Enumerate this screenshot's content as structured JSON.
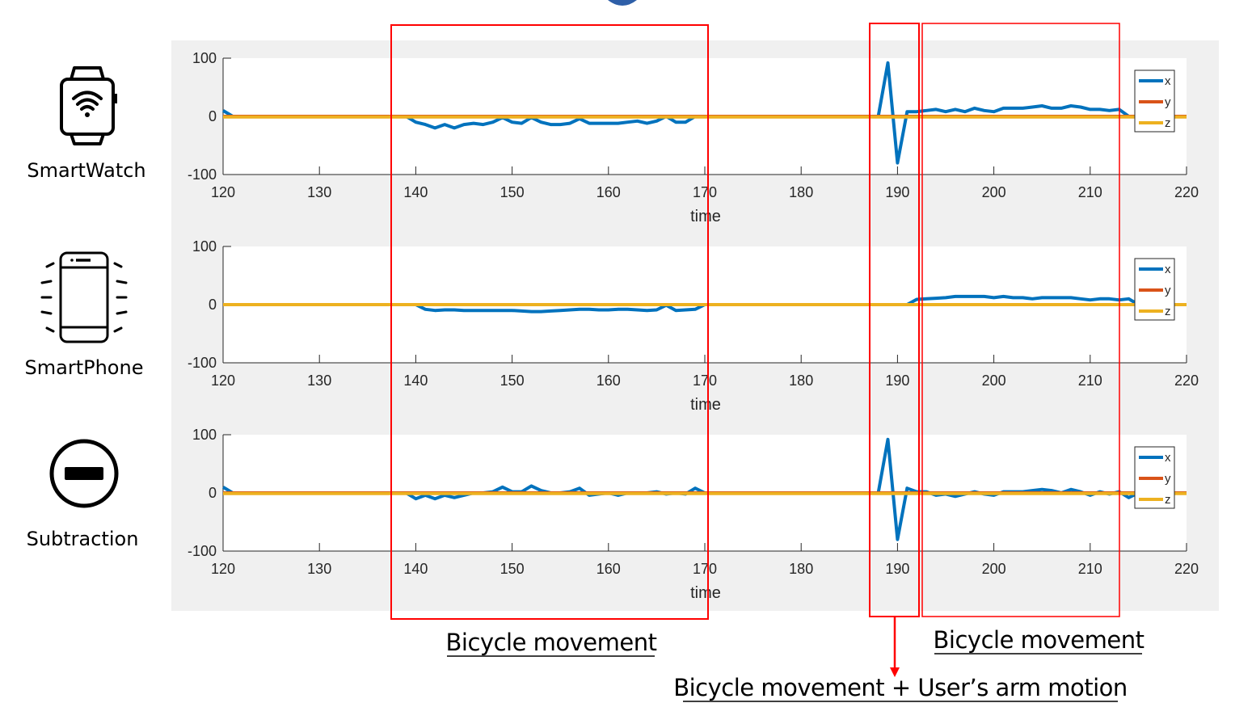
{
  "device_labels": {
    "smartwatch": "SmartWatch",
    "smartphone": "SmartPhone",
    "subtraction": "Subtraction"
  },
  "icons": [
    "smartwatch-icon",
    "smartphone-icon",
    "subtraction-icon"
  ],
  "annotations": {
    "left": "Bicycle movement",
    "right": "Bicycle movement",
    "bottom": "Bicycle movement + User’s arm motion"
  },
  "colors": {
    "x": "#0072BD",
    "y": "#D95319",
    "z": "#EDB120",
    "highlight": "#FF0000",
    "figure_background": "#F0F0F0"
  },
  "chart_data": [
    {
      "type": "line",
      "xlabel": "time",
      "xlim": [
        120,
        220
      ],
      "ylim": [
        -100,
        100
      ],
      "xticks": [
        "120",
        "130",
        "140",
        "150",
        "160",
        "170",
        "180",
        "190",
        "200",
        "210",
        "220"
      ],
      "yticks": [
        "100",
        "0",
        "-100"
      ],
      "legend": [
        "x",
        "y",
        "z"
      ],
      "legend_position": "right",
      "series": [
        {
          "name": "x",
          "points": [
            [
              120,
              10
            ],
            [
              121,
              0
            ],
            [
              138,
              0
            ],
            [
              139,
              0
            ],
            [
              140,
              -10
            ],
            [
              141,
              -14
            ],
            [
              142,
              -20
            ],
            [
              143,
              -14
            ],
            [
              144,
              -20
            ],
            [
              145,
              -14
            ],
            [
              146,
              -12
            ],
            [
              147,
              -14
            ],
            [
              148,
              -10
            ],
            [
              149,
              -2
            ],
            [
              150,
              -10
            ],
            [
              151,
              -12
            ],
            [
              152,
              -2
            ],
            [
              153,
              -10
            ],
            [
              154,
              -14
            ],
            [
              155,
              -14
            ],
            [
              156,
              -12
            ],
            [
              157,
              -4
            ],
            [
              158,
              -12
            ],
            [
              159,
              -12
            ],
            [
              160,
              -12
            ],
            [
              161,
              -12
            ],
            [
              162,
              -10
            ],
            [
              163,
              -8
            ],
            [
              164,
              -12
            ],
            [
              165,
              -8
            ],
            [
              166,
              0
            ],
            [
              167,
              -10
            ],
            [
              168,
              -10
            ],
            [
              169,
              0
            ],
            [
              170,
              0
            ],
            [
              188,
              0
            ],
            [
              189,
              92
            ],
            [
              190,
              -80
            ],
            [
              191,
              8
            ],
            [
              192,
              8
            ],
            [
              193,
              10
            ],
            [
              194,
              12
            ],
            [
              195,
              8
            ],
            [
              196,
              12
            ],
            [
              197,
              8
            ],
            [
              198,
              14
            ],
            [
              199,
              10
            ],
            [
              200,
              8
            ],
            [
              201,
              14
            ],
            [
              202,
              14
            ],
            [
              203,
              14
            ],
            [
              204,
              16
            ],
            [
              205,
              18
            ],
            [
              206,
              14
            ],
            [
              207,
              14
            ],
            [
              208,
              18
            ],
            [
              209,
              16
            ],
            [
              210,
              12
            ],
            [
              211,
              12
            ],
            [
              212,
              10
            ],
            [
              213,
              12
            ],
            [
              214,
              0
            ],
            [
              215,
              0
            ],
            [
              220,
              0
            ]
          ]
        },
        {
          "name": "y",
          "points": [
            [
              120,
              0
            ],
            [
              220,
              0
            ]
          ]
        },
        {
          "name": "z",
          "points": [
            [
              120,
              -1
            ],
            [
              220,
              -1
            ]
          ]
        }
      ]
    },
    {
      "type": "line",
      "xlabel": "time",
      "xlim": [
        120,
        220
      ],
      "ylim": [
        -100,
        100
      ],
      "xticks": [
        "120",
        "130",
        "140",
        "150",
        "160",
        "170",
        "180",
        "190",
        "200",
        "210",
        "220"
      ],
      "yticks": [
        "100",
        "0",
        "-100"
      ],
      "legend": [
        "x",
        "y",
        "z"
      ],
      "legend_position": "right",
      "series": [
        {
          "name": "x",
          "points": [
            [
              120,
              0
            ],
            [
              140,
              0
            ],
            [
              141,
              -8
            ],
            [
              142,
              -10
            ],
            [
              143,
              -9
            ],
            [
              144,
              -9
            ],
            [
              145,
              -10
            ],
            [
              146,
              -10
            ],
            [
              147,
              -10
            ],
            [
              148,
              -10
            ],
            [
              149,
              -10
            ],
            [
              150,
              -10
            ],
            [
              151,
              -11
            ],
            [
              152,
              -12
            ],
            [
              153,
              -12
            ],
            [
              154,
              -11
            ],
            [
              155,
              -10
            ],
            [
              156,
              -9
            ],
            [
              157,
              -8
            ],
            [
              158,
              -8
            ],
            [
              159,
              -9
            ],
            [
              160,
              -9
            ],
            [
              161,
              -8
            ],
            [
              162,
              -8
            ],
            [
              163,
              -9
            ],
            [
              164,
              -10
            ],
            [
              165,
              -9
            ],
            [
              166,
              -1
            ],
            [
              167,
              -10
            ],
            [
              168,
              -9
            ],
            [
              169,
              -8
            ],
            [
              170,
              0
            ],
            [
              191,
              0
            ],
            [
              192,
              9
            ],
            [
              193,
              10
            ],
            [
              194,
              11
            ],
            [
              195,
              12
            ],
            [
              196,
              14
            ],
            [
              197,
              14
            ],
            [
              198,
              14
            ],
            [
              199,
              14
            ],
            [
              200,
              12
            ],
            [
              201,
              14
            ],
            [
              202,
              12
            ],
            [
              203,
              12
            ],
            [
              204,
              10
            ],
            [
              205,
              12
            ],
            [
              206,
              12
            ],
            [
              207,
              12
            ],
            [
              208,
              12
            ],
            [
              209,
              10
            ],
            [
              210,
              8
            ],
            [
              211,
              10
            ],
            [
              212,
              10
            ],
            [
              213,
              8
            ],
            [
              214,
              10
            ],
            [
              215,
              0
            ],
            [
              220,
              0
            ]
          ]
        },
        {
          "name": "y",
          "points": [
            [
              120,
              0
            ],
            [
              220,
              0
            ]
          ]
        },
        {
          "name": "z",
          "points": [
            [
              120,
              0
            ],
            [
              220,
              0
            ]
          ]
        }
      ]
    },
    {
      "type": "line",
      "xlabel": "time",
      "xlim": [
        120,
        220
      ],
      "ylim": [
        -100,
        100
      ],
      "xticks": [
        "120",
        "130",
        "140",
        "150",
        "160",
        "170",
        "180",
        "190",
        "200",
        "210",
        "220"
      ],
      "yticks": [
        "100",
        "0",
        "-100"
      ],
      "legend": [
        "x",
        "y",
        "z"
      ],
      "legend_position": "right",
      "series": [
        {
          "name": "x",
          "points": [
            [
              120,
              10
            ],
            [
              121,
              0
            ],
            [
              139,
              0
            ],
            [
              140,
              -10
            ],
            [
              141,
              -4
            ],
            [
              142,
              -10
            ],
            [
              143,
              -4
            ],
            [
              144,
              -8
            ],
            [
              145,
              -4
            ],
            [
              146,
              0
            ],
            [
              147,
              0
            ],
            [
              148,
              2
            ],
            [
              149,
              10
            ],
            [
              150,
              2
            ],
            [
              151,
              2
            ],
            [
              152,
              12
            ],
            [
              153,
              4
            ],
            [
              154,
              0
            ],
            [
              155,
              0
            ],
            [
              156,
              2
            ],
            [
              157,
              8
            ],
            [
              158,
              -4
            ],
            [
              159,
              -2
            ],
            [
              160,
              0
            ],
            [
              161,
              -4
            ],
            [
              162,
              0
            ],
            [
              163,
              0
            ],
            [
              164,
              0
            ],
            [
              165,
              2
            ],
            [
              166,
              -2
            ],
            [
              167,
              0
            ],
            [
              168,
              -2
            ],
            [
              169,
              8
            ],
            [
              170,
              0
            ],
            [
              188,
              0
            ],
            [
              189,
              92
            ],
            [
              190,
              -80
            ],
            [
              191,
              8
            ],
            [
              192,
              2
            ],
            [
              193,
              2
            ],
            [
              194,
              -4
            ],
            [
              195,
              -2
            ],
            [
              196,
              -6
            ],
            [
              197,
              -2
            ],
            [
              198,
              2
            ],
            [
              199,
              -2
            ],
            [
              200,
              -4
            ],
            [
              201,
              2
            ],
            [
              202,
              2
            ],
            [
              203,
              2
            ],
            [
              204,
              4
            ],
            [
              205,
              6
            ],
            [
              206,
              4
            ],
            [
              207,
              0
            ],
            [
              208,
              6
            ],
            [
              209,
              2
            ],
            [
              210,
              -4
            ],
            [
              211,
              2
            ],
            [
              212,
              -2
            ],
            [
              213,
              2
            ],
            [
              214,
              -8
            ],
            [
              215,
              0
            ],
            [
              220,
              0
            ]
          ]
        },
        {
          "name": "y",
          "points": [
            [
              120,
              0
            ],
            [
              220,
              0
            ]
          ]
        },
        {
          "name": "z",
          "points": [
            [
              120,
              -1
            ],
            [
              220,
              -1
            ]
          ]
        }
      ]
    }
  ]
}
